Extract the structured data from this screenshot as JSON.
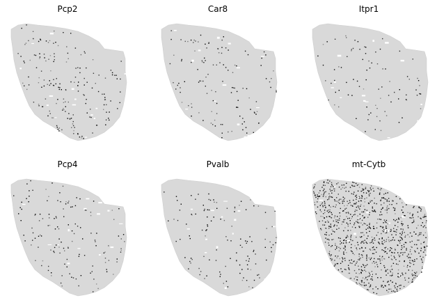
{
  "chart_data": {
    "type": "scatter",
    "description_kind": "spatial gene expression maps of a tissue section, one panel per gene; cells colored grey (low) to black (high)",
    "axes_visible": false,
    "grid": false,
    "legend": "none",
    "colors": {
      "background_tissue": "#d9d9d9",
      "low": "#d9d9d9",
      "high": "#000000"
    },
    "panels": [
      {
        "title": "Pcp2",
        "pattern": "lobule-bands",
        "density": 0.42,
        "scatter": 0.06
      },
      {
        "title": "Car8",
        "pattern": "lobule-bands",
        "density": 0.3,
        "scatter": 0.04
      },
      {
        "title": "Itpr1",
        "pattern": "sparse",
        "density": 0.12,
        "scatter": 0.1
      },
      {
        "title": "Pcp4",
        "pattern": "lobule-bands",
        "density": 0.28,
        "scatter": 0.05
      },
      {
        "title": "Pvalb",
        "pattern": "lobule-bands",
        "density": 0.22,
        "scatter": 0.05
      },
      {
        "title": "mt-Cytb",
        "pattern": "dense",
        "density": 0.55,
        "scatter": 0.55
      }
    ]
  }
}
